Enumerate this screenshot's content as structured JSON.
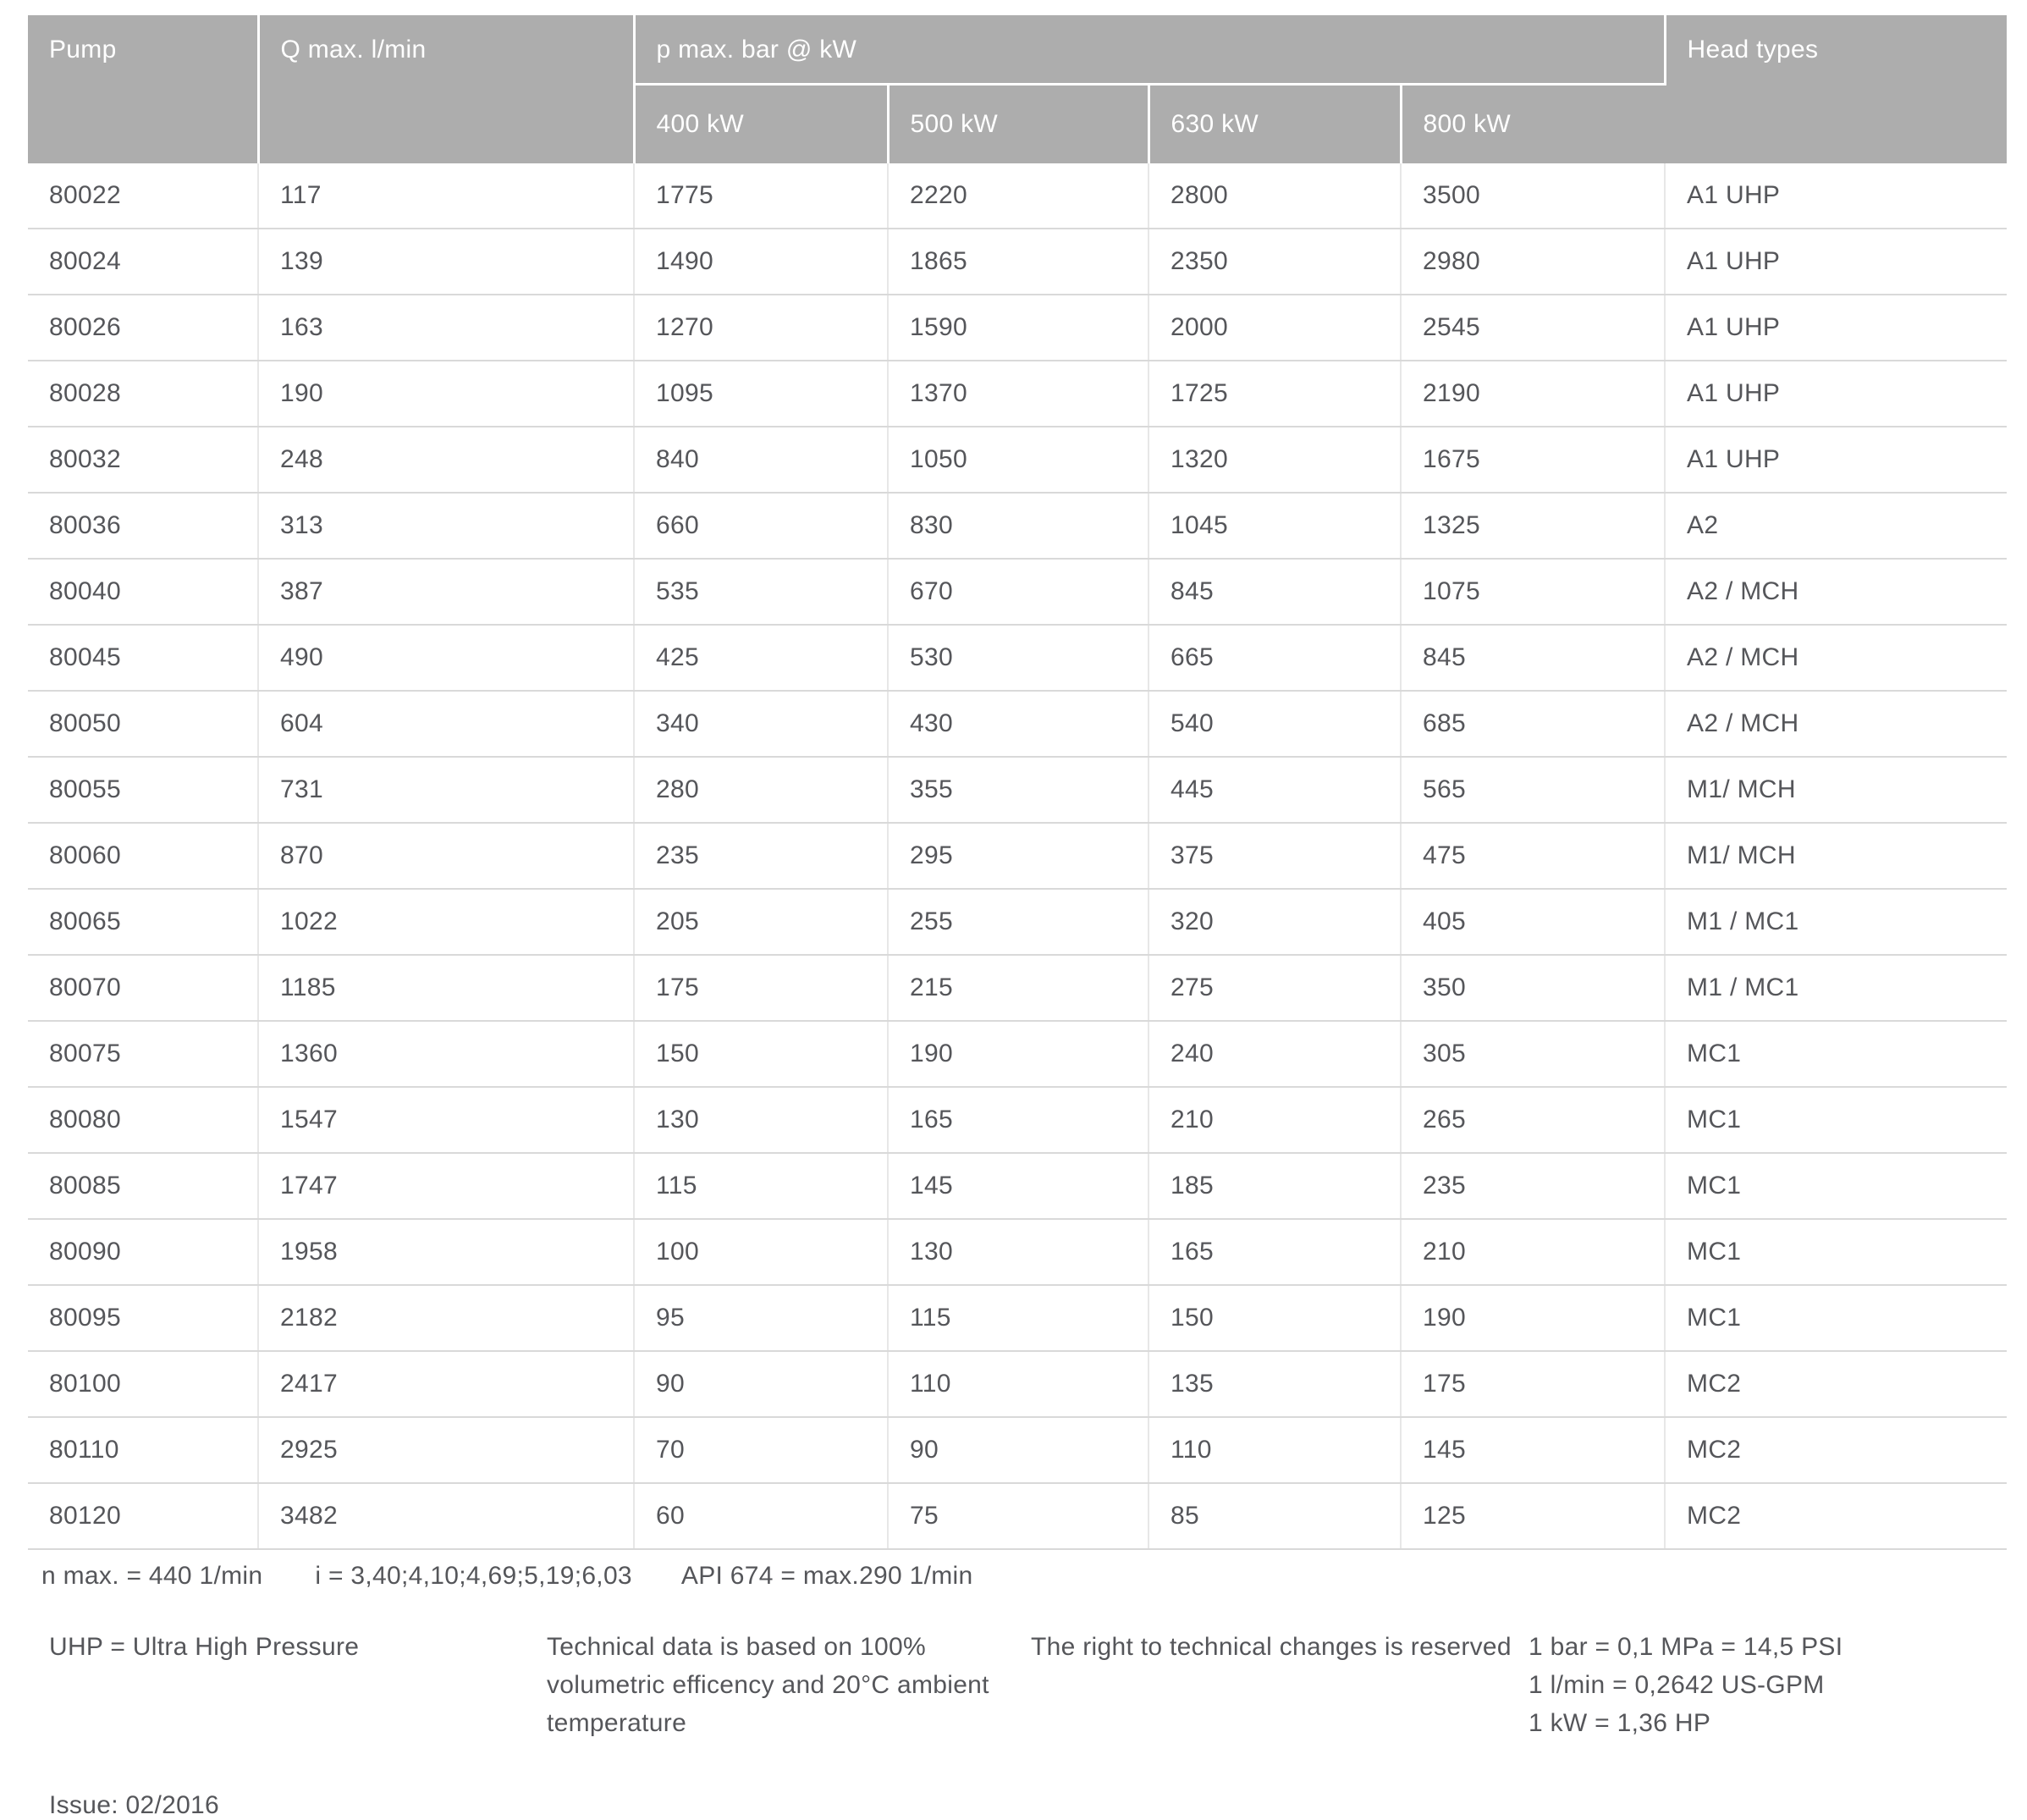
{
  "table": {
    "columns": {
      "pump": "Pump",
      "q_max": "Q max. l/min",
      "p_max_group": "p max. bar @ kW",
      "power_levels": [
        "400 kW",
        "500 kW",
        "630 kW",
        "800 kW"
      ],
      "head_types": "Head types"
    },
    "rows": [
      [
        "80022",
        "117",
        "1775",
        "2220",
        "2800",
        "3500",
        "A1 UHP"
      ],
      [
        "80024",
        "139",
        "1490",
        "1865",
        "2350",
        "2980",
        "A1 UHP"
      ],
      [
        "80026",
        "163",
        "1270",
        "1590",
        "2000",
        "2545",
        "A1 UHP"
      ],
      [
        "80028",
        "190",
        "1095",
        "1370",
        "1725",
        "2190",
        "A1 UHP"
      ],
      [
        "80032",
        "248",
        "840",
        "1050",
        "1320",
        "1675",
        "A1 UHP"
      ],
      [
        "80036",
        "313",
        "660",
        "830",
        "1045",
        "1325",
        "A2"
      ],
      [
        "80040",
        "387",
        "535",
        "670",
        "845",
        "1075",
        "A2 / MCH"
      ],
      [
        "80045",
        "490",
        "425",
        "530",
        "665",
        "845",
        "A2 / MCH"
      ],
      [
        "80050",
        "604",
        "340",
        "430",
        "540",
        "685",
        "A2 / MCH"
      ],
      [
        "80055",
        "731",
        "280",
        "355",
        "445",
        "565",
        "M1/ MCH"
      ],
      [
        "80060",
        "870",
        "235",
        "295",
        "375",
        "475",
        "M1/ MCH"
      ],
      [
        "80065",
        "1022",
        "205",
        "255",
        "320",
        "405",
        "M1 / MC1"
      ],
      [
        "80070",
        "1185",
        "175",
        "215",
        "275",
        "350",
        "M1 / MC1"
      ],
      [
        "80075",
        "1360",
        "150",
        "190",
        "240",
        "305",
        "MC1"
      ],
      [
        "80080",
        "1547",
        "130",
        "165",
        "210",
        "265",
        "MC1"
      ],
      [
        "80085",
        "1747",
        "115",
        "145",
        "185",
        "235",
        "MC1"
      ],
      [
        "80090",
        "1958",
        "100",
        "130",
        "165",
        "210",
        "MC1"
      ],
      [
        "80095",
        "2182",
        "95",
        "115",
        "150",
        "190",
        "MC1"
      ],
      [
        "80100",
        "2417",
        "90",
        "110",
        "135",
        "175",
        "MC2"
      ],
      [
        "80110",
        "2925",
        "70",
        "90",
        "110",
        "145",
        "MC2"
      ],
      [
        "80120",
        "3482",
        "60",
        "75",
        "85",
        "125",
        "MC2"
      ]
    ]
  },
  "notes": {
    "n_max": "n max. = 440 1/min",
    "gear_ratios": "i = 3,40;4,10;4,69;5,19;6,03",
    "api": "API 674 = max.290 1/min",
    "uhp": "UHP = Ultra High Pressure",
    "technical_basis": "Technical data is based on 100% volumetric efficency and 20°C ambient temperature",
    "rights": "The right to technical changes is reserved",
    "conversions": [
      "1 bar = 0,1 MPa = 14,5 PSI",
      "1 l/min = 0,2642 US-GPM",
      "1 kW = 1,36 HP"
    ],
    "issue": "Issue: 02/2016"
  },
  "colors": {
    "header_bg": "#adadad",
    "header_text": "#ffffff",
    "body_text": "#55565a",
    "row_border": "#d9d9d9",
    "col_border": "#e7e7e7"
  }
}
